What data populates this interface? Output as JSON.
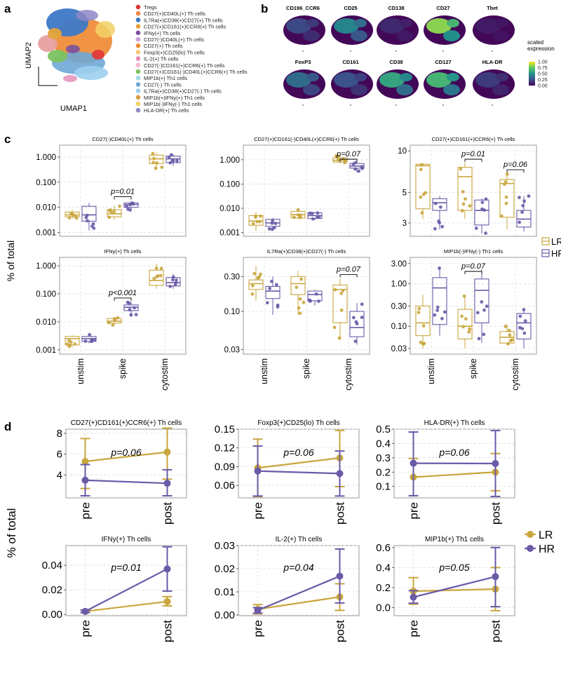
{
  "colors": {
    "LR": "#c9a63d",
    "HR": "#6a5aa8",
    "grid": "#dcdcdc",
    "frame": "#9a9a9a"
  },
  "panel_labels": [
    "a",
    "b",
    "c",
    "d"
  ],
  "panel_a": {
    "xlabel": "UMAP1",
    "ylabel": "UMAP2",
    "legend": [
      {
        "label": "Tregs",
        "color": "#e03a3a"
      },
      {
        "label": "CD27(+)CD40L(+) Th cells",
        "color": "#f0884a"
      },
      {
        "label": "IL7Ra(+)CD38(+)CD27(+) Th cells",
        "color": "#3e78c6"
      },
      {
        "label": "CD27(+)CD161(+)CCR6(+) Th cells",
        "color": "#e5a33a"
      },
      {
        "label": "IFNy(+) Th cells",
        "color": "#7a52a0"
      },
      {
        "label": "CD27(-)CD40L(+) Th cells",
        "color": "#c9a2d6"
      },
      {
        "label": "CD27(+) Th cells",
        "color": "#f08d3a"
      },
      {
        "label": "Foxp3(+)CD25(lo) Th cells",
        "color": "#f3c97a"
      },
      {
        "label": "IL-2(+) Th cells",
        "color": "#e48fb8"
      },
      {
        "label": "CD27(-)CD161(+)CCR6(+) Th cells",
        "color": "#f4b8cc"
      },
      {
        "label": "CD27(+)CD161(-)CD40L(+)CCR6(+) Th cells",
        "color": "#7cc35f"
      },
      {
        "label": "MIP1b(+) Th1 cells",
        "color": "#a7dbe8"
      },
      {
        "label": "CD27(-) Th cells",
        "color": "#6fa9d6"
      },
      {
        "label": "IL7Ra(+)CD38(+)CD27(-) Th cells",
        "color": "#9dd0ee"
      },
      {
        "label": "MIP1b(+)IFNy(+) Th1 cells",
        "color": "#d8a04b"
      },
      {
        "label": "MIP1b(-)IFNy(-) Th1 cells",
        "color": "#f2d166"
      },
      {
        "label": "HLA-DR(+) Th cells",
        "color": "#8e86c5"
      }
    ]
  },
  "panel_b": {
    "markers": [
      "CD196_CCR6",
      "CD25",
      "CD138",
      "CD27",
      "Tbet",
      "FoxP3",
      "CD161",
      "CD38",
      "CD127",
      "HLA-DR"
    ],
    "expression_level": [
      0.22,
      0.45,
      0.12,
      0.82,
      0.08,
      0.35,
      0.25,
      0.58,
      0.65,
      0.18
    ],
    "colorbar_title": "scaled\nexpression",
    "colorbar_ticks": [
      "1.00",
      "0.75",
      "0.50",
      "0.25",
      "0.00"
    ]
  },
  "chart_data": [
    {
      "type": "box",
      "id": "c1",
      "title": "CD27(-)CD40L(+) Th cells",
      "scale": "log",
      "ylim": [
        0.0007,
        3
      ],
      "yticks": [
        0.001,
        0.01,
        0.1,
        1
      ],
      "yticklabels": [
        "0.001",
        "0.010",
        "0.100",
        "1.000"
      ],
      "categories": [
        "unstim",
        "spike",
        "cytostim"
      ],
      "series": [
        {
          "name": "LR",
          "boxes": [
            [
              0.0035,
              0.0042,
              0.005,
              0.0065,
              0.008
            ],
            [
              0.0032,
              0.0042,
              0.0055,
              0.008,
              0.012
            ],
            [
              0.3,
              0.55,
              0.85,
              1.2,
              1.5
            ]
          ]
        },
        {
          "name": "HR",
          "boxes": [
            [
              0.0012,
              0.0028,
              0.005,
              0.011,
              0.015
            ],
            [
              0.0075,
              0.01,
              0.013,
              0.015,
              0.018
            ],
            [
              0.45,
              0.6,
              0.85,
              1.1,
              1.3
            ]
          ]
        }
      ],
      "annotations": [
        {
          "text": "p=0.01",
          "category": 1
        }
      ]
    },
    {
      "type": "box",
      "id": "c2",
      "title": "CD27(+)CD161(-)CD40L(+)CCR6(+) Th cells",
      "scale": "log",
      "ylim": [
        0.0007,
        4
      ],
      "yticks": [
        0.001,
        0.01,
        0.1,
        1
      ],
      "yticklabels": [
        "0.001",
        "0.010",
        "0.100",
        "1.000"
      ],
      "categories": [
        "unstim",
        "spike",
        "cytostim"
      ],
      "series": [
        {
          "name": "LR",
          "boxes": [
            [
              0.0012,
              0.002,
              0.003,
              0.005,
              0.007
            ],
            [
              0.0035,
              0.004,
              0.0055,
              0.0075,
              0.009
            ],
            [
              0.7,
              0.8,
              0.95,
              1.2,
              1.5
            ]
          ]
        },
        {
          "name": "HR",
          "boxes": [
            [
              0.0012,
              0.0018,
              0.0025,
              0.0035,
              0.004
            ],
            [
              0.0032,
              0.0038,
              0.005,
              0.0065,
              0.007
            ],
            [
              0.3,
              0.45,
              0.55,
              0.7,
              0.9
            ]
          ]
        }
      ],
      "annotations": [
        {
          "text": "p=0.07",
          "category": 2
        }
      ]
    },
    {
      "type": "box",
      "id": "c3",
      "title": "CD27(+)CD161(+)CCR6(+) Th cells",
      "scale": "log",
      "ylim": [
        2.4,
        11
      ],
      "yticks": [
        3,
        5,
        10
      ],
      "yticklabels": [
        "3",
        "5",
        "10"
      ],
      "categories": [
        "unstim",
        "spike",
        "cytostim"
      ],
      "series": [
        {
          "name": "LR",
          "boxes": [
            [
              3.2,
              3.8,
              7.8,
              8.0,
              8.2
            ],
            [
              3.2,
              3.7,
              6.5,
              7.6,
              8.2
            ],
            [
              2.7,
              3.3,
              5.8,
              6.2,
              6.8
            ]
          ]
        },
        {
          "name": "HR",
          "boxes": [
            [
              2.7,
              3.7,
              4.2,
              4.5,
              4.7
            ],
            [
              2.5,
              2.9,
              3.7,
              4.4,
              4.5
            ],
            [
              2.6,
              2.8,
              3.2,
              3.7,
              4.7
            ]
          ]
        }
      ],
      "annotations": [
        {
          "text": "p=0.01",
          "category": 1
        },
        {
          "text": "p=0.06",
          "category": 2
        }
      ]
    },
    {
      "type": "box",
      "id": "c4",
      "title": "IFNy(+) Th cells",
      "scale": "log",
      "ylim": [
        0.0007,
        2
      ],
      "yticks": [
        0.001,
        0.01,
        0.1,
        1
      ],
      "yticklabels": [
        "0.001",
        "0.010",
        "0.100",
        "1.000"
      ],
      "categories": [
        "unstim",
        "spike",
        "cytostim"
      ],
      "series": [
        {
          "name": "LR",
          "boxes": [
            [
              0.0012,
              0.0015,
              0.0025,
              0.003,
              0.0033
            ],
            [
              0.0075,
              0.009,
              0.0105,
              0.013,
              0.015
            ],
            [
              0.15,
              0.2,
              0.3,
              0.7,
              1.2
            ]
          ]
        },
        {
          "name": "HR",
          "boxes": [
            [
              0.0017,
              0.002,
              0.0025,
              0.003,
              0.0035
            ],
            [
              0.015,
              0.025,
              0.033,
              0.04,
              0.05
            ],
            [
              0.15,
              0.19,
              0.25,
              0.38,
              0.5
            ]
          ]
        }
      ],
      "annotations": [
        {
          "text": "p<0.001",
          "category": 1
        }
      ]
    },
    {
      "type": "box",
      "id": "c5",
      "title": "IL7Ra(+)CD38(+)CD27(-) Th cells",
      "scale": "log",
      "ylim": [
        0.026,
        0.55
      ],
      "yticks": [
        0.03,
        0.1,
        0.3
      ],
      "yticklabels": [
        "0.03",
        "0.10",
        "0.30"
      ],
      "categories": [
        "unstim",
        "spike",
        "cytostim"
      ],
      "series": [
        {
          "name": "LR",
          "boxes": [
            [
              0.14,
              0.2,
              0.24,
              0.27,
              0.42
            ],
            [
              0.09,
              0.17,
              0.24,
              0.3,
              0.36
            ],
            [
              0.04,
              0.07,
              0.2,
              0.23,
              0.28
            ]
          ]
        },
        {
          "name": "HR",
          "boxes": [
            [
              0.09,
              0.15,
              0.19,
              0.22,
              0.3
            ],
            [
              0.12,
              0.14,
              0.17,
              0.19,
              0.2
            ],
            [
              0.035,
              0.045,
              0.06,
              0.1,
              0.13
            ]
          ]
        }
      ],
      "annotations": [
        {
          "text": "p=0.07",
          "category": 2
        }
      ]
    },
    {
      "type": "box",
      "id": "c6",
      "title": "MIP1b(-)IFNy(-) Th1 cells",
      "scale": "log",
      "ylim": [
        0.022,
        4.2
      ],
      "yticks": [
        0.03,
        0.1,
        0.3,
        1,
        3
      ],
      "yticklabels": [
        "0.03",
        "0.10",
        "0.30",
        "1.00",
        "3.00"
      ],
      "categories": [
        "unstim",
        "spike",
        "cytostim"
      ],
      "series": [
        {
          "name": "LR",
          "boxes": [
            [
              0.03,
              0.06,
              0.12,
              0.3,
              0.55
            ],
            [
              0.03,
              0.05,
              0.1,
              0.25,
              0.55
            ],
            [
              0.035,
              0.04,
              0.055,
              0.075,
              0.11
            ]
          ]
        },
        {
          "name": "HR",
          "boxes": [
            [
              0.06,
              0.11,
              0.8,
              1.4,
              2.4
            ],
            [
              0.04,
              0.12,
              0.7,
              1.3,
              2.2
            ],
            [
              0.03,
              0.05,
              0.12,
              0.2,
              0.25
            ]
          ]
        }
      ],
      "annotations": [
        {
          "text": "p=0.07",
          "category": 1
        }
      ]
    },
    {
      "type": "line",
      "id": "d1",
      "title": "CD27(+)CD161(+)CCR6(+) Th cells",
      "ylim": [
        1.8,
        8.4
      ],
      "yticks": [
        4,
        6,
        8
      ],
      "yticklabels": [
        "4",
        "6",
        "8"
      ],
      "x": [
        "pre",
        "post"
      ],
      "series": [
        {
          "name": "LR",
          "values": [
            5.3,
            6.2
          ],
          "err": [
            [
              2.7,
              7.5
            ],
            [
              3.6,
              8.5
            ]
          ]
        },
        {
          "name": "HR",
          "values": [
            3.5,
            3.2
          ],
          "err": [
            [
              2.0,
              5.0
            ],
            [
              2.0,
              4.5
            ]
          ]
        }
      ],
      "annotation": "p=0.06"
    },
    {
      "type": "line",
      "id": "d2",
      "title": "Foxp3(+)CD25(lo) Th cells",
      "ylim": [
        0.04,
        0.15
      ],
      "yticks": [
        0.06,
        0.09,
        0.12,
        0.15
      ],
      "yticklabels": [
        "0.06",
        "0.09",
        "0.12",
        "0.15"
      ],
      "x": [
        "pre",
        "post"
      ],
      "series": [
        {
          "name": "LR",
          "values": [
            0.088,
            0.104
          ],
          "err": [
            [
              0.042,
              0.134
            ],
            [
              0.058,
              0.148
            ]
          ]
        },
        {
          "name": "HR",
          "values": [
            0.083,
            0.079
          ],
          "err": [
            [
              0.043,
              0.123
            ],
            [
              0.043,
              0.115
            ]
          ]
        }
      ],
      "annotation": "p=0.06"
    },
    {
      "type": "line",
      "id": "d3",
      "title": "HLA-DR(+) Th cells",
      "ylim": [
        0.02,
        0.5
      ],
      "yticks": [
        0.1,
        0.2,
        0.3,
        0.4,
        0.5
      ],
      "yticklabels": [
        "0.1",
        "0.2",
        "0.3",
        "0.4",
        "0.5"
      ],
      "x": [
        "pre",
        "post"
      ],
      "series": [
        {
          "name": "LR",
          "values": [
            0.165,
            0.2
          ],
          "err": [
            [
              0.035,
              0.295
            ],
            [
              0.07,
              0.33
            ]
          ]
        },
        {
          "name": "HR",
          "values": [
            0.262,
            0.26
          ],
          "err": [
            [
              0.035,
              0.48
            ],
            [
              0.03,
              0.49
            ]
          ]
        }
      ],
      "annotation": "p=0.06"
    },
    {
      "type": "line",
      "id": "d4",
      "title": "IFNy(+) Th cells",
      "ylim": [
        -0.001,
        0.056
      ],
      "yticks": [
        0,
        0.02,
        0.04
      ],
      "yticklabels": [
        "0.00",
        "0.02",
        "0.04"
      ],
      "x": [
        "pre",
        "post"
      ],
      "series": [
        {
          "name": "LR",
          "values": [
            0.0025,
            0.0105
          ],
          "err": [
            [
              0.0015,
              0.0035
            ],
            [
              0.007,
              0.0145
            ]
          ]
        },
        {
          "name": "HR",
          "values": [
            0.0025,
            0.037
          ],
          "err": [
            [
              0.0015,
              0.0035
            ],
            [
              0.019,
              0.055
            ]
          ]
        }
      ],
      "annotation": "p=0.01"
    },
    {
      "type": "line",
      "id": "d5",
      "title": "IL-2(+) Th cells",
      "ylim": [
        -0.0003,
        0.03
      ],
      "yticks": [
        0,
        0.01,
        0.02,
        0.03
      ],
      "yticklabels": [
        "0.00",
        "0.01",
        "0.02",
        "0.03"
      ],
      "x": [
        "pre",
        "post"
      ],
      "series": [
        {
          "name": "LR",
          "values": [
            0.0025,
            0.0078
          ],
          "err": [
            [
              0.0005,
              0.0045
            ],
            [
              0.002,
              0.0135
            ]
          ]
        },
        {
          "name": "HR",
          "values": [
            0.002,
            0.0168
          ],
          "err": [
            [
              0.0008,
              0.0032
            ],
            [
              0.0052,
              0.0285
            ]
          ]
        }
      ],
      "annotation": "p=0.04"
    },
    {
      "type": "line",
      "id": "d6",
      "title": "MIP1b(+) Th1 cells",
      "ylim": [
        -0.08,
        0.62
      ],
      "yticks": [
        0,
        0.2,
        0.4,
        0.6
      ],
      "yticklabels": [
        "0.0",
        "0.2",
        "0.4",
        "0.6"
      ],
      "x": [
        "pre",
        "post"
      ],
      "series": [
        {
          "name": "LR",
          "values": [
            0.165,
            0.185
          ],
          "err": [
            [
              0.035,
              0.3
            ],
            [
              -0.03,
              0.4
            ]
          ]
        },
        {
          "name": "HR",
          "values": [
            0.105,
            0.31
          ],
          "err": [
            [
              0.045,
              0.17
            ],
            [
              0.01,
              0.6
            ]
          ]
        }
      ],
      "annotation": "p=0.05"
    }
  ],
  "shared": {
    "c_ylabel": "% of total",
    "d_ylabel": "% of total",
    "legend": [
      "LR",
      "HR"
    ]
  }
}
